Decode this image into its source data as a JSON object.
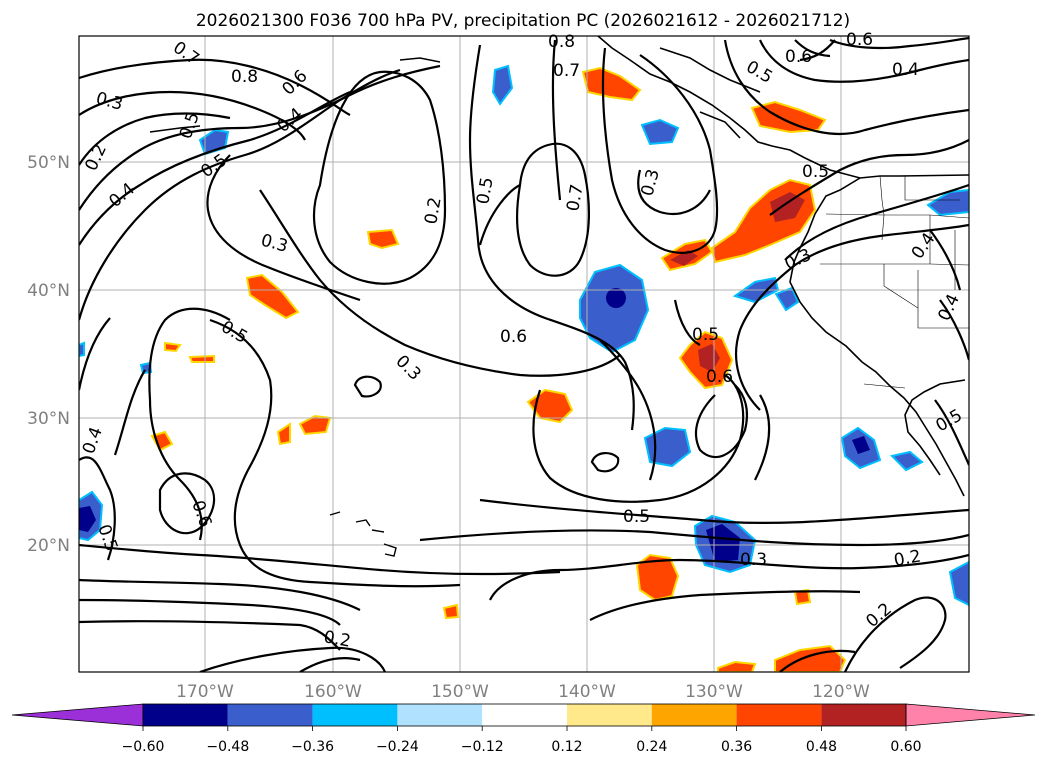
{
  "title": "2026021300 F036 700 hPa PV, precipitation PC (2026021612 - 2026021712)",
  "lat_labels": [
    "50°N",
    "40°N",
    "30°N",
    "20°N"
  ],
  "lon_labels": [
    "170°W",
    "160°W",
    "150°W",
    "140°W",
    "130°W",
    "120°W"
  ],
  "contour_labels": [
    {
      "text": "0.7"
    },
    {
      "text": "0.8"
    },
    {
      "text": "0.3"
    },
    {
      "text": "0.6"
    },
    {
      "text": "0.5"
    },
    {
      "text": "0.4"
    },
    {
      "text": "0.2"
    },
    {
      "text": "0.5"
    },
    {
      "text": "0.4"
    },
    {
      "text": "0.8"
    },
    {
      "text": "0.7"
    },
    {
      "text": "0.5"
    },
    {
      "text": "0.6"
    },
    {
      "text": "0.6"
    },
    {
      "text": "0.4"
    },
    {
      "text": "0.3"
    },
    {
      "text": "0.2"
    },
    {
      "text": "0.5"
    },
    {
      "text": "0.7"
    },
    {
      "text": "0.3"
    },
    {
      "text": "0.5"
    },
    {
      "text": "0.3"
    },
    {
      "text": "0.4"
    },
    {
      "text": "0.4"
    },
    {
      "text": "0.5"
    },
    {
      "text": "0.6"
    },
    {
      "text": "0.3"
    },
    {
      "text": "0.5"
    },
    {
      "text": "0.6"
    },
    {
      "text": "0.4"
    },
    {
      "text": "0.6"
    },
    {
      "text": "0.5"
    },
    {
      "text": "0.5"
    },
    {
      "text": "0.3"
    },
    {
      "text": "0.2"
    },
    {
      "text": "0.2"
    },
    {
      "text": "0.2"
    },
    {
      "text": "0.5"
    }
  ],
  "colorbar": {
    "colors": [
      "#9b30d9",
      "#00008b",
      "#3a5fcd",
      "#00bfff",
      "#b0e2ff",
      "#ffffff",
      "#ffe98a",
      "#ffa500",
      "#ff4500",
      "#b22222",
      "#ff82ab"
    ],
    "ticks": [
      "−0.60",
      "−0.48",
      "−0.36",
      "−0.24",
      "−0.12",
      "0.12",
      "0.24",
      "0.36",
      "0.48",
      "0.60"
    ]
  },
  "colors": {
    "contour": "#000000",
    "grid": "#b0b0b0",
    "axis_label": "#808080",
    "negative_strong": "#00008b",
    "negative_mid": "#3a5fcd",
    "negative_light": "#00bfff",
    "positive_light": "#ffe98a",
    "positive_mid": "#ff4500",
    "positive_strong": "#b22222"
  }
}
